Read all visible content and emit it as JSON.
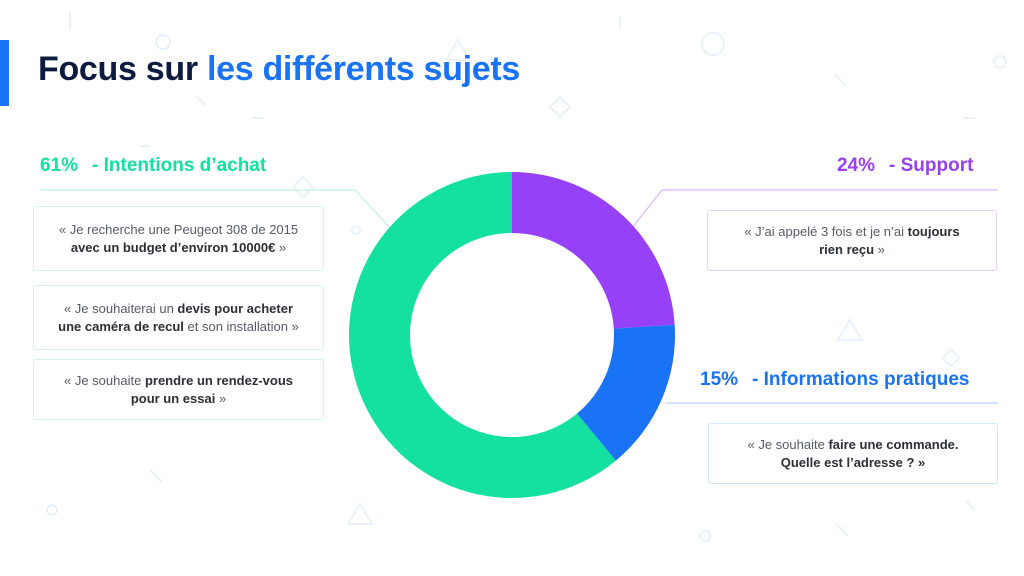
{
  "page": {
    "title_part1": "Focus sur ",
    "title_part2": "les différents sujets"
  },
  "colors": {
    "title_dark": "#0d1b3e",
    "title_accent": "#1a73f5",
    "intentions": "#14e0a0",
    "support": "#9640f8",
    "informations": "#1a73f5"
  },
  "chart_data": {
    "type": "pie",
    "donut": true,
    "slices": [
      {
        "label": "Intentions d'achat",
        "value": 61
      },
      {
        "label": "Support",
        "value": 24
      },
      {
        "label": "Informations pratiques",
        "value": 15
      }
    ]
  },
  "categories": {
    "intentions": {
      "pct": "61%",
      "name": "- Intentions d’achat",
      "quotes": [
        {
          "l1": [
            {
              "t": "« Je recherche une Peugeot 308 de 2015",
              "b": false
            }
          ],
          "l2": [
            {
              "t": "avec un budget d’environ 10000€",
              "b": true
            },
            {
              "t": " »",
              "b": false
            }
          ]
        },
        {
          "l1": [
            {
              "t": "« Je souhaiterai un ",
              "b": false
            },
            {
              "t": "devis pour acheter",
              "b": true
            }
          ],
          "l2": [
            {
              "t": "une caméra de recul",
              "b": true
            },
            {
              "t": " et son installation »",
              "b": false
            }
          ]
        },
        {
          "l1": [
            {
              "t": "« Je souhaite ",
              "b": false
            },
            {
              "t": "prendre un rendez-vous",
              "b": true
            }
          ],
          "l2": [
            {
              "t": "pour un essai",
              "b": true
            },
            {
              "t": " »",
              "b": false
            }
          ]
        }
      ]
    },
    "support": {
      "pct": "24%",
      "name": "- Support",
      "quotes": [
        {
          "l1": [
            {
              "t": "« J’ai appelé 3 fois et je n’ai ",
              "b": false
            },
            {
              "t": "toujours",
              "b": true
            }
          ],
          "l2": [
            {
              "t": "rien reçu",
              "b": true
            },
            {
              "t": " »",
              "b": false
            }
          ]
        }
      ]
    },
    "informations": {
      "pct": "15%",
      "name": "- Informations pratiques",
      "quotes": [
        {
          "l1": [
            {
              "t": "« Je souhaite ",
              "b": false
            },
            {
              "t": "faire une commande.",
              "b": true
            }
          ],
          "l2": [
            {
              "t": "Quelle est l’adresse ? »",
              "b": true
            }
          ]
        }
      ]
    }
  }
}
